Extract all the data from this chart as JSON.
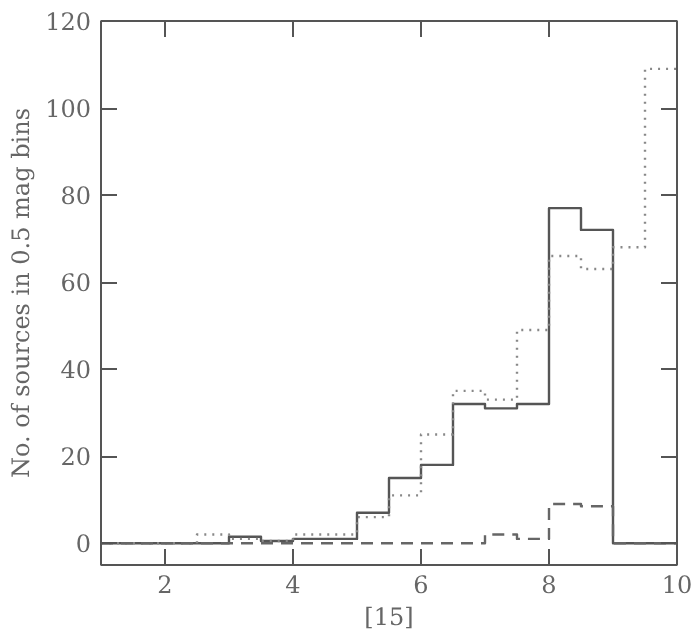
{
  "chart_data": {
    "type": "histogram",
    "xlabel": "[15]",
    "ylabel": "No. of sources in 0.5 mag bins",
    "bins": [
      1.0,
      1.5,
      2.0,
      2.5,
      3.0,
      3.5,
      4.0,
      4.5,
      5.0,
      5.5,
      6.0,
      6.5,
      7.0,
      7.5,
      8.0,
      8.5,
      9.0,
      9.5,
      10.0
    ],
    "series": [
      {
        "color": "#555555",
        "line_style": "solid",
        "values": [
          0,
          0,
          0,
          0,
          1.5,
          0.5,
          1,
          1,
          7,
          15,
          18,
          32,
          31,
          32,
          77,
          72,
          0,
          0
        ]
      },
      {
        "color": "#888888",
        "line_style": "dotted",
        "values": [
          0,
          0,
          0,
          2,
          1,
          0.5,
          2,
          2,
          6,
          11,
          25,
          35,
          33,
          49,
          66,
          63,
          68,
          109
        ]
      },
      {
        "color": "#666666",
        "line_style": "dashed",
        "values": [
          0,
          0,
          0,
          0,
          0,
          0,
          0,
          0,
          0,
          0,
          0,
          0,
          2,
          1,
          9,
          8.5,
          0,
          0
        ]
      }
    ],
    "xlim": [
      1,
      10
    ],
    "ylim": [
      -5,
      120
    ],
    "xticks": [
      2,
      4,
      6,
      8,
      10
    ],
    "yticks": [
      0,
      20,
      40,
      60,
      80,
      100,
      120
    ],
    "grid": false
  }
}
